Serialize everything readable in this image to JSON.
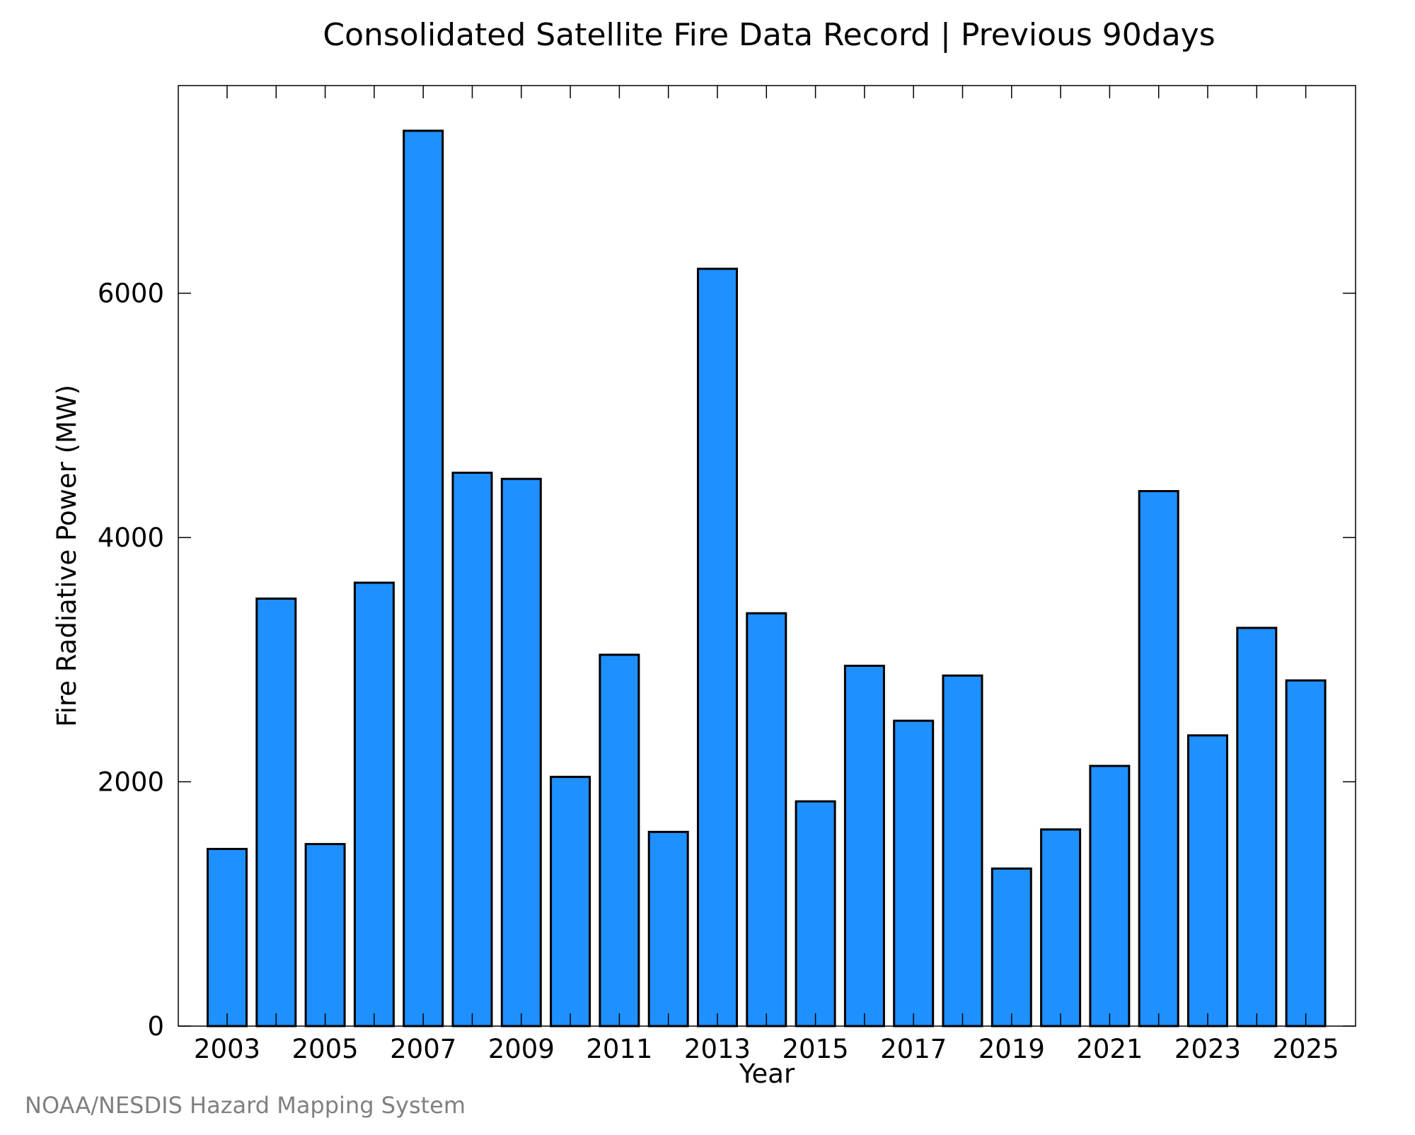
{
  "credit": "NOAA/NESDIS Hazard Mapping System",
  "colors": {
    "bar_fill": "#1e90ff",
    "bar_stroke": "#000000",
    "credit_text": "#808080"
  },
  "chart_data": {
    "type": "bar",
    "title": "Consolidated Satellite Fire Data Record | Previous 90days",
    "xlabel": "Year",
    "ylabel": "Fire Radiative Power (MW)",
    "categories": [
      "2003",
      "2004",
      "2005",
      "2006",
      "2007",
      "2008",
      "2009",
      "2010",
      "2011",
      "2012",
      "2013",
      "2014",
      "2015",
      "2016",
      "2017",
      "2018",
      "2019",
      "2020",
      "2021",
      "2022",
      "2023",
      "2024",
      "2025"
    ],
    "values": [
      1450,
      3500,
      1490,
      3630,
      7330,
      4530,
      4480,
      2040,
      3040,
      1590,
      6200,
      3380,
      1840,
      2950,
      2500,
      2870,
      1290,
      1610,
      2130,
      4380,
      2380,
      3260,
      2830
    ],
    "x_tick_labels": [
      "2003",
      "2005",
      "2007",
      "2009",
      "2011",
      "2013",
      "2015",
      "2017",
      "2019",
      "2021",
      "2023",
      "2025"
    ],
    "y_ticks": [
      0,
      2000,
      4000,
      6000
    ],
    "ylim": [
      0,
      7700
    ],
    "grid": false,
    "legend": false
  }
}
